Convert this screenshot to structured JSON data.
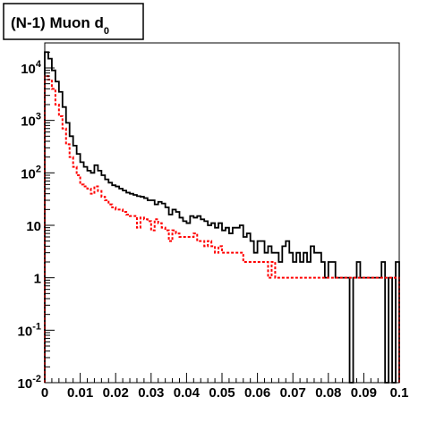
{
  "chart_data": {
    "type": "line",
    "title": "(N-1) Muon d",
    "title_subscript": "0",
    "xlabel": "",
    "ylabel": "",
    "xlim": [
      0,
      0.1
    ],
    "ylim": [
      0.01,
      30000
    ],
    "yscale": "log",
    "grid": false,
    "legend": "none",
    "x_ticks": [
      0,
      0.01,
      0.02,
      0.03,
      0.04,
      0.05,
      0.06,
      0.07,
      0.08,
      0.09,
      0.1
    ],
    "x_tick_labels": [
      "0",
      "0.01",
      "0.02",
      "0.03",
      "0.04",
      "0.05",
      "0.06",
      "0.07",
      "0.08",
      "0.09",
      "0.1"
    ],
    "y_ticks": [
      0.01,
      0.1,
      1,
      10,
      100,
      1000,
      10000
    ],
    "y_tick_labels": [
      {
        "base": "10",
        "exp": "-2"
      },
      {
        "base": "10",
        "exp": "-1"
      },
      {
        "base": "1",
        "exp": ""
      },
      {
        "base": "10",
        "exp": ""
      },
      {
        "base": "10",
        "exp": "2"
      },
      {
        "base": "10",
        "exp": "3"
      },
      {
        "base": "10",
        "exp": "4"
      }
    ],
    "bin_width": 0.001,
    "series": [
      {
        "color": "#000000",
        "dashed": false,
        "values": [
          20000,
          15000,
          9000,
          5500,
          3500,
          1800,
          900,
          500,
          330,
          230,
          160,
          130,
          110,
          100,
          140,
          110,
          90,
          75,
          65,
          58,
          55,
          50,
          46,
          42,
          40,
          38,
          36,
          35,
          33,
          30,
          30,
          25,
          28,
          26,
          22,
          16,
          20,
          18,
          14,
          12,
          11,
          15,
          14,
          15,
          13,
          12,
          10,
          11,
          9,
          11,
          8,
          9,
          7,
          9,
          9,
          10,
          6,
          7,
          5,
          3,
          5,
          5,
          3,
          4,
          3,
          3,
          2,
          4,
          5,
          3,
          2,
          3,
          2,
          3,
          2,
          4,
          3,
          3,
          2,
          1,
          2,
          2,
          1,
          1,
          1,
          1,
          0.01,
          1,
          2,
          1,
          1,
          1,
          1,
          1,
          1,
          2,
          0.01,
          1,
          0.01,
          2,
          0.01
        ]
      },
      {
        "color": "#ff0000",
        "dashed": true,
        "values": [
          7000,
          6000,
          4000,
          2000,
          1200,
          700,
          350,
          200,
          130,
          90,
          60,
          55,
          50,
          40,
          55,
          45,
          35,
          30,
          25,
          22,
          20,
          20,
          18,
          16,
          15,
          15,
          9,
          14,
          13,
          12,
          8,
          13,
          11,
          9,
          8,
          5,
          8,
          7,
          6,
          6,
          6,
          6,
          7,
          5,
          5,
          4,
          5,
          4,
          3,
          4,
          3,
          3,
          3,
          3,
          3,
          3,
          2,
          2,
          2,
          2,
          2,
          2,
          2,
          1,
          2,
          1,
          1,
          1,
          1,
          1,
          1,
          1,
          1,
          1,
          1,
          1,
          1,
          1,
          1,
          1,
          1,
          1,
          1,
          1,
          1,
          1,
          1,
          1,
          1,
          1,
          1,
          1,
          1,
          1,
          1,
          1,
          1,
          1,
          1,
          1,
          1
        ]
      }
    ]
  }
}
